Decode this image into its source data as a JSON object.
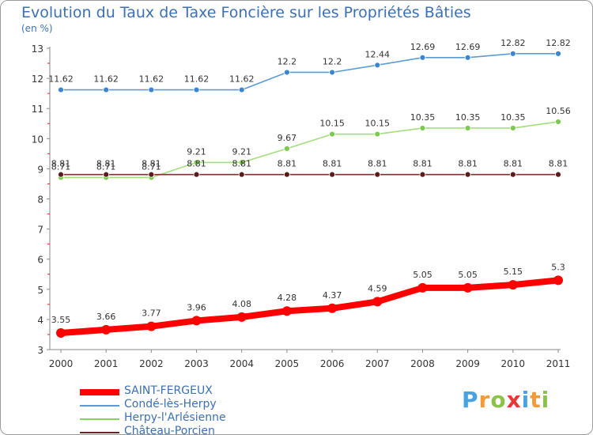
{
  "header": {
    "title": "Evolution du Taux de Taxe Foncière sur les Propriétés Bâties",
    "unit": "(en %)"
  },
  "chart_data": {
    "type": "line",
    "title": "Evolution du Taux de Taxe Foncière sur les Propriétés Bâties",
    "ylabel": "(en %)",
    "xlabel": "",
    "x": [
      "2000",
      "2001",
      "2002",
      "2003",
      "2004",
      "2005",
      "2006",
      "2007",
      "2008",
      "2009",
      "2010",
      "2011"
    ],
    "yticks": [
      "3",
      "4",
      "5",
      "6",
      "7",
      "8",
      "9",
      "10",
      "11",
      "12",
      "13"
    ],
    "ylim": [
      3,
      13
    ],
    "grid": false,
    "legend_position": "bottom-left",
    "series": [
      {
        "name": "SAINT-FERGEUX",
        "color": "#ff0000",
        "values": [
          3.55,
          3.66,
          3.77,
          3.96,
          4.08,
          4.28,
          4.37,
          4.59,
          5.05,
          5.05,
          5.15,
          5.3
        ],
        "labels": [
          "3.55",
          "3.66",
          "3.77",
          "3.96",
          "4.08",
          "4.28",
          "4.37",
          "4.59",
          "5.05",
          "5.05",
          "5.15",
          "5.3"
        ]
      },
      {
        "name": "Condé-lès-Herpy",
        "color": "#5b9bd5",
        "values": [
          11.62,
          11.62,
          11.62,
          11.62,
          11.62,
          12.2,
          12.2,
          12.44,
          12.69,
          12.69,
          12.82,
          12.82
        ],
        "labels": [
          "11.62",
          "11.62",
          "11.62",
          "11.62",
          "11.62",
          "12.2",
          "12.2",
          "12.44",
          "12.69",
          "12.69",
          "12.82",
          "12.82"
        ]
      },
      {
        "name": "Herpy-l'Arlésienne",
        "color": "#88d35c",
        "values": [
          8.71,
          8.71,
          8.71,
          9.21,
          9.21,
          9.67,
          10.15,
          10.15,
          10.35,
          10.35,
          10.35,
          10.56
        ],
        "labels": [
          "8.71",
          "8.71",
          "8.71",
          "9.21",
          "9.21",
          "9.67",
          "10.15",
          "10.15",
          "10.35",
          "10.35",
          "10.35",
          "10.56"
        ]
      },
      {
        "name": "Château-Porcien",
        "color": "#6b2424",
        "values": [
          8.81,
          8.81,
          8.81,
          8.81,
          8.81,
          8.81,
          8.81,
          8.81,
          8.81,
          8.81,
          8.81,
          8.81
        ],
        "labels": [
          "8.81",
          "8.81",
          "8.81",
          "8.81",
          "8.81",
          "8.81",
          "8.81",
          "8.81",
          "8.81",
          "8.81",
          "8.81",
          "8.81"
        ]
      }
    ]
  },
  "legend": {
    "items": [
      {
        "label": "SAINT-FERGEUX",
        "color": "#ff0000"
      },
      {
        "label": "Condé-lès-Herpy",
        "color": "#5b9bd5"
      },
      {
        "label": "Herpy-l'Arlésienne",
        "color": "#88d35c"
      },
      {
        "label": "Château-Porcien",
        "color": "#6b2424"
      }
    ]
  },
  "logo": {
    "letters": [
      "P",
      "r",
      "o",
      "x",
      "i",
      "t",
      "i"
    ],
    "colors": [
      "#4aa3df",
      "#f29b38",
      "#8bc34a",
      "#e53935",
      "#4aa3df",
      "#f29b38",
      "#8bc34a"
    ]
  }
}
